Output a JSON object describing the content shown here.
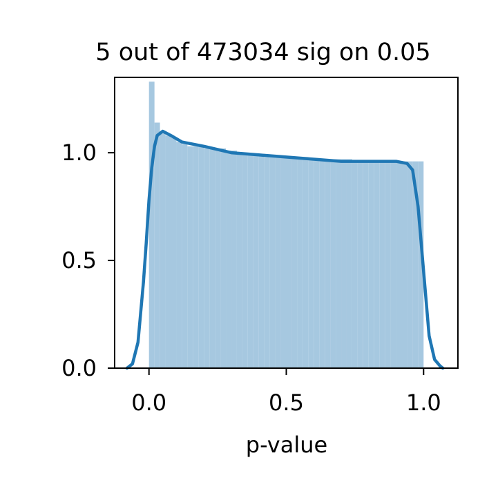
{
  "chart_data": {
    "type": "bar",
    "title": "5 out of 473034 sig on 0.05",
    "xlabel": "p-value",
    "ylabel": "",
    "xlim": [
      -0.125,
      1.125
    ],
    "ylim": [
      0.0,
      1.35
    ],
    "x_ticks": [
      {
        "value": 0.0,
        "label": "0.0"
      },
      {
        "value": 0.5,
        "label": "0.5"
      },
      {
        "value": 1.0,
        "label": "1.0"
      }
    ],
    "y_ticks": [
      {
        "value": 0.0,
        "label": "0.0"
      },
      {
        "value": 0.5,
        "label": "0.5"
      },
      {
        "value": 1.0,
        "label": "1.0"
      }
    ],
    "grid": false,
    "histogram": {
      "bin_start": 0.0,
      "bin_width": 0.02,
      "color": "#a6c8e0",
      "densities": [
        1.33,
        1.14,
        1.1,
        1.08,
        1.07,
        1.05,
        1.04,
        1.03,
        1.03,
        1.03,
        1.02,
        1.02,
        1.02,
        1.02,
        1.01,
        1.01,
        1.0,
        1.0,
        0.99,
        0.99,
        0.99,
        0.98,
        0.98,
        0.98,
        0.98,
        0.98,
        0.98,
        0.98,
        0.98,
        0.97,
        0.97,
        0.97,
        0.97,
        0.97,
        0.97,
        0.97,
        0.97,
        0.96,
        0.96,
        0.96,
        0.96,
        0.96,
        0.96,
        0.96,
        0.96,
        0.96,
        0.96,
        0.96,
        0.96,
        0.96
      ]
    },
    "kde": {
      "color": "#1f77b4",
      "x": [
        -0.08,
        -0.06,
        -0.04,
        -0.02,
        -0.01,
        0.0,
        0.01,
        0.02,
        0.03,
        0.05,
        0.08,
        0.12,
        0.2,
        0.3,
        0.4,
        0.5,
        0.6,
        0.7,
        0.8,
        0.9,
        0.94,
        0.96,
        0.98,
        0.99,
        1.0,
        1.01,
        1.02,
        1.04,
        1.06,
        1.07
      ],
      "y": [
        0.0,
        0.02,
        0.12,
        0.4,
        0.58,
        0.78,
        0.93,
        1.03,
        1.08,
        1.1,
        1.08,
        1.05,
        1.03,
        1.0,
        0.99,
        0.98,
        0.97,
        0.96,
        0.96,
        0.96,
        0.95,
        0.92,
        0.75,
        0.6,
        0.45,
        0.3,
        0.15,
        0.04,
        0.01,
        0.0
      ]
    }
  }
}
